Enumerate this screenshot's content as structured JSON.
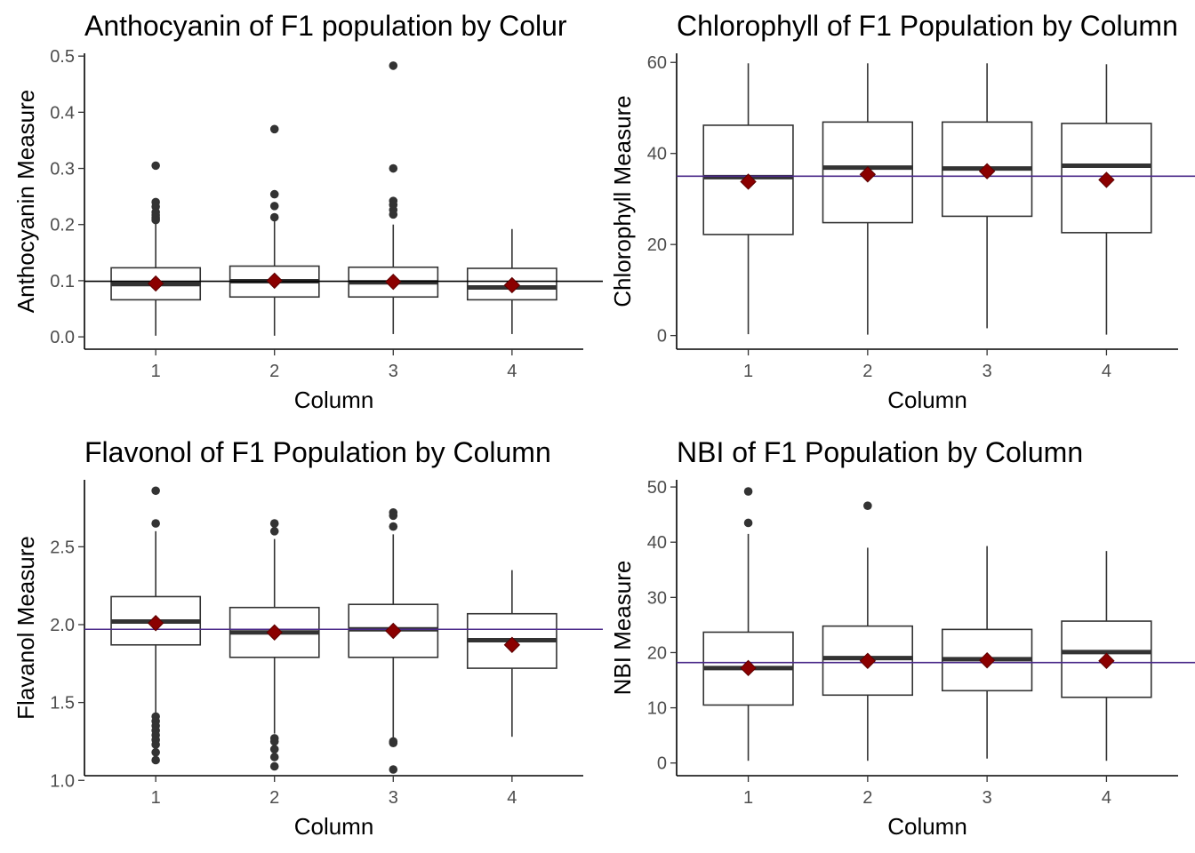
{
  "chart_data": [
    {
      "type": "box",
      "title": "Anthocyanin of F1 population by Colur",
      "xlabel": "Column",
      "ylabel": "Anthocyanin Measure",
      "categories": [
        "1",
        "2",
        "3",
        "4"
      ],
      "ylim": [
        -0.022,
        0.505
      ],
      "yticks": [
        0.0,
        0.1,
        0.2,
        0.3,
        0.4,
        0.5
      ],
      "ytick_labels": [
        "0.0",
        "0.1",
        "0.2",
        "0.3",
        "0.4",
        "0.5"
      ],
      "boxes": [
        {
          "min": 0.002,
          "q1": 0.066,
          "median": 0.094,
          "q3": 0.123,
          "max": 0.205,
          "mean": 0.095,
          "outliers": [
            0.305,
            0.24,
            0.232,
            0.222,
            0.217,
            0.212,
            0.208
          ]
        },
        {
          "min": 0.002,
          "q1": 0.071,
          "median": 0.099,
          "q3": 0.126,
          "max": 0.207,
          "mean": 0.1,
          "outliers": [
            0.37,
            0.254,
            0.233,
            0.213
          ]
        },
        {
          "min": 0.005,
          "q1": 0.071,
          "median": 0.097,
          "q3": 0.124,
          "max": 0.2,
          "mean": 0.098,
          "outliers": [
            0.483,
            0.3,
            0.242,
            0.235,
            0.226,
            0.218
          ]
        },
        {
          "min": 0.005,
          "q1": 0.066,
          "median": 0.088,
          "q3": 0.122,
          "max": 0.192,
          "mean": 0.092,
          "outliers": []
        }
      ],
      "hline": {
        "value": 0.099,
        "color": "#000000"
      },
      "mean_color": "#8b0000"
    },
    {
      "type": "box",
      "title": "Chlorophyll of F1 Population by Column",
      "xlabel": "Column",
      "ylabel": "Chlorophyll Measure",
      "categories": [
        "1",
        "2",
        "3",
        "4"
      ],
      "ylim": [
        -3,
        62
      ],
      "yticks": [
        0,
        20,
        40,
        60
      ],
      "ytick_labels": [
        "0",
        "20",
        "40",
        "60"
      ],
      "boxes": [
        {
          "min": 0.3,
          "q1": 22.2,
          "median": 34.8,
          "q3": 46.2,
          "max": 59.8,
          "mean": 33.8,
          "outliers": []
        },
        {
          "min": 0.2,
          "q1": 24.8,
          "median": 36.9,
          "q3": 46.9,
          "max": 59.8,
          "mean": 35.4,
          "outliers": []
        },
        {
          "min": 1.6,
          "q1": 26.2,
          "median": 36.7,
          "q3": 46.9,
          "max": 59.8,
          "mean": 36.1,
          "outliers": []
        },
        {
          "min": 0.2,
          "q1": 22.6,
          "median": 37.3,
          "q3": 46.6,
          "max": 59.6,
          "mean": 34.2,
          "outliers": []
        }
      ],
      "hline": {
        "value": 35.0,
        "color": "#4b2a8a"
      },
      "mean_color": "#8b0000"
    },
    {
      "type": "box",
      "title": "Flavonol of F1 Population by Column",
      "xlabel": "Column",
      "ylabel": "Flavanol Measure",
      "categories": [
        "1",
        "2",
        "3",
        "4"
      ],
      "ylim": [
        1.03,
        2.93
      ],
      "yticks": [
        1.0,
        1.5,
        2.0,
        2.5
      ],
      "ytick_labels": [
        "1.0",
        "1.5",
        "2.0",
        "2.5"
      ],
      "boxes": [
        {
          "min": 1.43,
          "q1": 1.87,
          "median": 2.02,
          "q3": 2.18,
          "max": 2.6,
          "mean": 2.01,
          "outliers": [
            2.86,
            2.65,
            1.41,
            1.38,
            1.35,
            1.32,
            1.29,
            1.26,
            1.23,
            1.18,
            1.13
          ]
        },
        {
          "min": 1.3,
          "q1": 1.79,
          "median": 1.95,
          "q3": 2.11,
          "max": 2.55,
          "mean": 1.95,
          "outliers": [
            2.65,
            2.6,
            1.27,
            1.25,
            1.2,
            1.15,
            1.09
          ]
        },
        {
          "min": 1.27,
          "q1": 1.79,
          "median": 1.97,
          "q3": 2.13,
          "max": 2.58,
          "mean": 1.96,
          "outliers": [
            2.72,
            2.7,
            2.63,
            1.25,
            1.24,
            1.07
          ]
        },
        {
          "min": 1.28,
          "q1": 1.72,
          "median": 1.9,
          "q3": 2.07,
          "max": 2.35,
          "mean": 1.87,
          "outliers": []
        }
      ],
      "hline": {
        "value": 1.97,
        "color": "#4b2a8a"
      },
      "mean_color": "#8b0000"
    },
    {
      "type": "box",
      "title": "NBI of F1 Population by Column",
      "xlabel": "Column",
      "ylabel": "NBI Measure",
      "categories": [
        "1",
        "2",
        "3",
        "4"
      ],
      "ylim": [
        -2.3,
        51.3
      ],
      "yticks": [
        0,
        10,
        20,
        30,
        40,
        50
      ],
      "ytick_labels": [
        "0",
        "10",
        "20",
        "30",
        "40",
        "50"
      ],
      "boxes": [
        {
          "min": 0.4,
          "q1": 10.5,
          "median": 17.2,
          "q3": 23.7,
          "max": 41.5,
          "mean": 17.2,
          "outliers": [
            49.2,
            43.5
          ]
        },
        {
          "min": 0.4,
          "q1": 12.3,
          "median": 19.0,
          "q3": 24.8,
          "max": 39.0,
          "mean": 18.5,
          "outliers": [
            46.6
          ]
        },
        {
          "min": 0.8,
          "q1": 13.1,
          "median": 18.8,
          "q3": 24.2,
          "max": 39.3,
          "mean": 18.6,
          "outliers": []
        },
        {
          "min": 0.4,
          "q1": 11.9,
          "median": 20.1,
          "q3": 25.7,
          "max": 38.4,
          "mean": 18.5,
          "outliers": []
        }
      ],
      "hline": {
        "value": 18.2,
        "color": "#4b2a8a"
      },
      "mean_color": "#8b0000"
    }
  ]
}
